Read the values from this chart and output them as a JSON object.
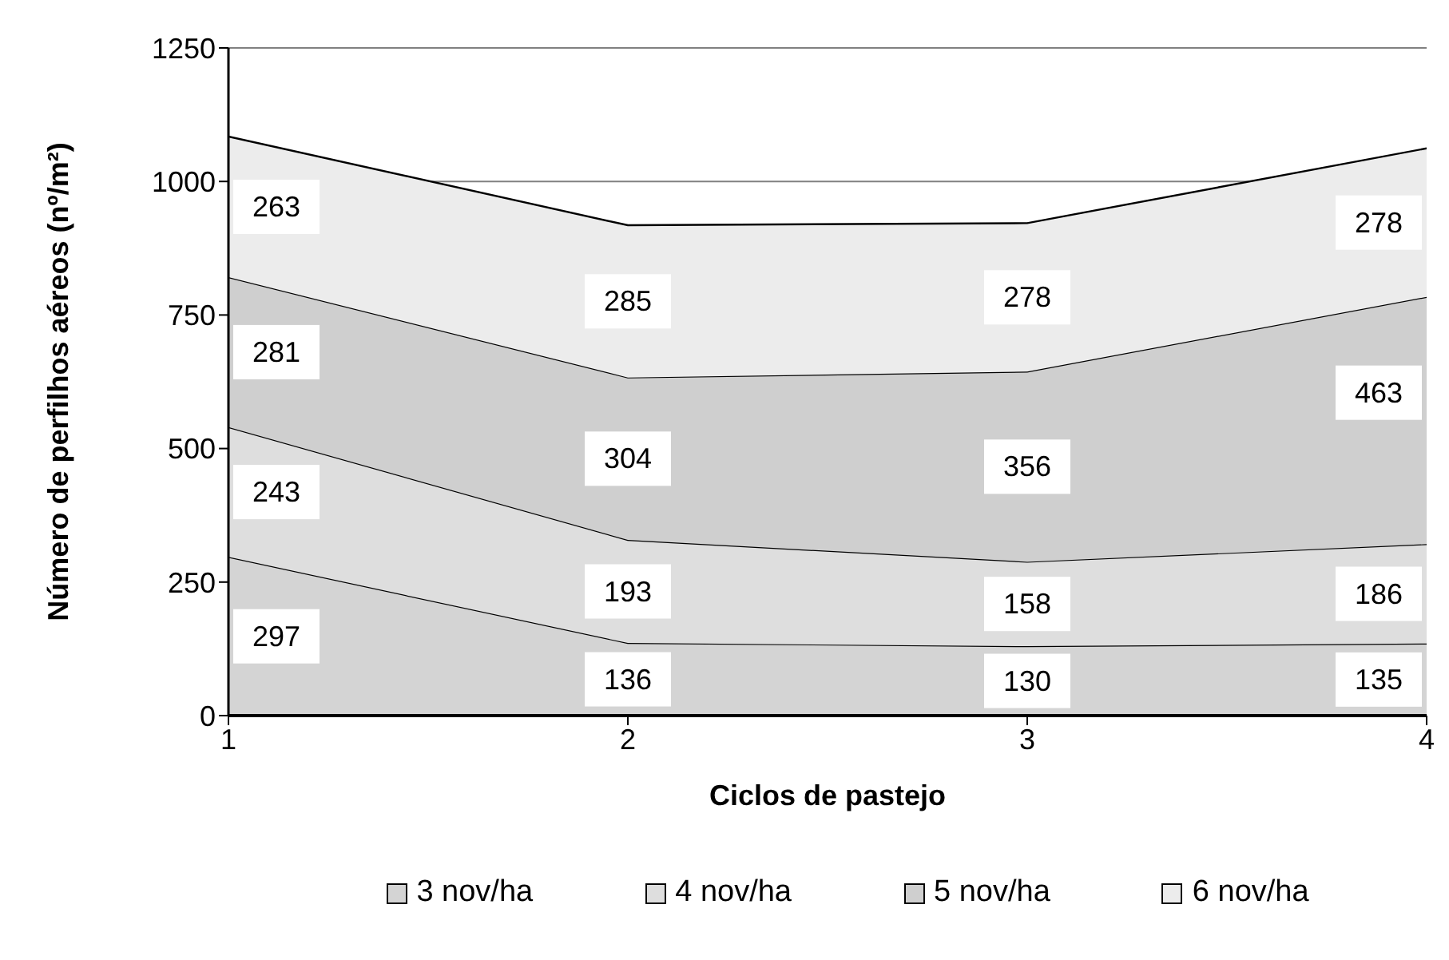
{
  "chart_data": {
    "type": "area",
    "stacked": true,
    "xlabel": "Ciclos de pastejo",
    "ylabel": "Número de perfilhos aéreos (nº/m²)",
    "x": [
      1,
      2,
      3,
      4
    ],
    "xlim": [
      1,
      4
    ],
    "xticks": [
      1,
      2,
      3,
      4
    ],
    "ylim": [
      0,
      1250
    ],
    "yticks": [
      0,
      250,
      500,
      750,
      1000,
      1250
    ],
    "grid": "y",
    "legend": "bottom",
    "data_labels": true,
    "series": [
      {
        "name": "3 nov/ha",
        "color": "#d4d4d4",
        "values": [
          297,
          136,
          130,
          135
        ]
      },
      {
        "name": "4 nov/ha",
        "color": "#dedede",
        "values": [
          243,
          193,
          158,
          186
        ]
      },
      {
        "name": "5 nov/ha",
        "color": "#cfcfcf",
        "values": [
          281,
          304,
          356,
          463
        ]
      },
      {
        "name": "6 nov/ha",
        "color": "#ececec",
        "values": [
          263,
          285,
          278,
          278
        ]
      }
    ]
  }
}
